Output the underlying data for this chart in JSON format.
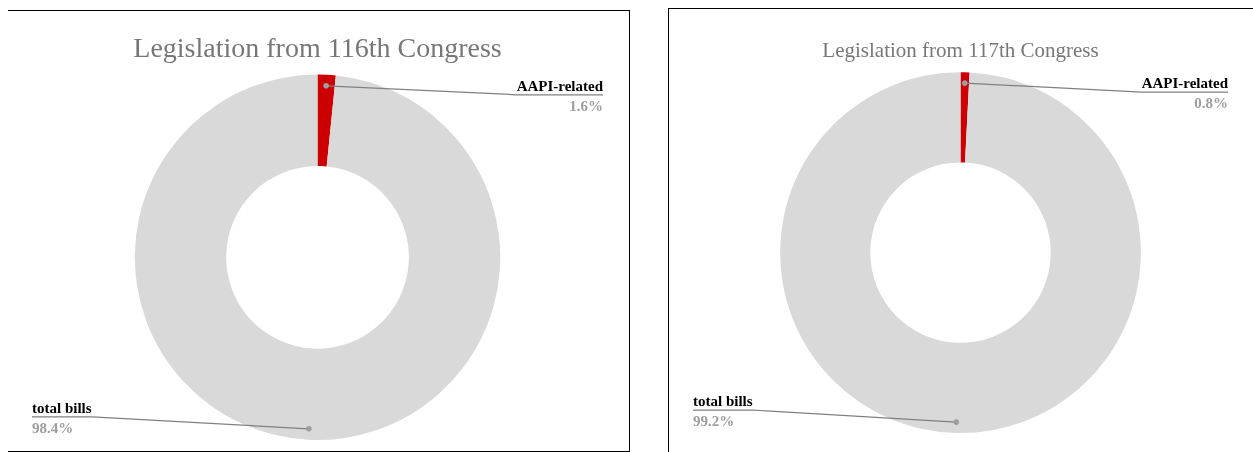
{
  "chart_data": [
    {
      "type": "donut",
      "title": "Legislation from 116th Congress",
      "categories": [
        "AAPI-related",
        "total bills"
      ],
      "values": [
        1.6,
        98.4
      ],
      "colors": [
        "#cc0000",
        "#d9d9d9"
      ],
      "value_labels": [
        "1.6%",
        "98.4%"
      ]
    },
    {
      "type": "donut",
      "title": "Legislation from 117th Congress",
      "categories": [
        "AAPI-related",
        "total bills"
      ],
      "values": [
        0.8,
        99.2
      ],
      "colors": [
        "#cc0000",
        "#d9d9d9"
      ],
      "value_labels": [
        "0.8%",
        "99.2%"
      ]
    }
  ]
}
